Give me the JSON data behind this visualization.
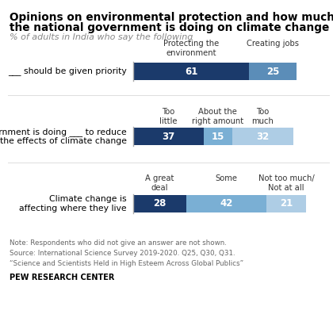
{
  "title_line1": "Opinions on environmental protection and how much",
  "title_line2": "the national government is doing on climate change",
  "subtitle": "% of adults in India who say the following",
  "rows": [
    {
      "label": "___ should be given priority",
      "col_labels": [
        "Protecting the\nenvironment",
        "Creating jobs"
      ],
      "segments": [
        {
          "value": 61,
          "color": "#1b3a6b"
        },
        {
          "value": 25,
          "color": "#5b8db8"
        }
      ]
    },
    {
      "label": "Government is doing ___ to reduce\nthe effects of climate change",
      "col_labels": [
        "Too\nlittle",
        "About the\nright amount",
        "Too\nmuch"
      ],
      "segments": [
        {
          "value": 37,
          "color": "#1b3a6b"
        },
        {
          "value": 15,
          "color": "#7aafd4"
        },
        {
          "value": 32,
          "color": "#aecde5"
        }
      ]
    },
    {
      "label": "Climate change is\naffecting where they live",
      "col_labels": [
        "A great\ndeal",
        "Some",
        "Not too much/\nNot at all"
      ],
      "segments": [
        {
          "value": 28,
          "color": "#1b3a6b"
        },
        {
          "value": 42,
          "color": "#7aafd4"
        },
        {
          "value": 21,
          "color": "#aecde5"
        }
      ]
    }
  ],
  "note_lines": [
    "Note: Respondents who did not give an answer are not shown.",
    "Source: International Science Survey 2019-2020. Q25, Q30, Q31.",
    "“Science and Scientists Held in High Esteem Across Global Publics”"
  ],
  "footer": "PEW RESEARCH CENTER"
}
